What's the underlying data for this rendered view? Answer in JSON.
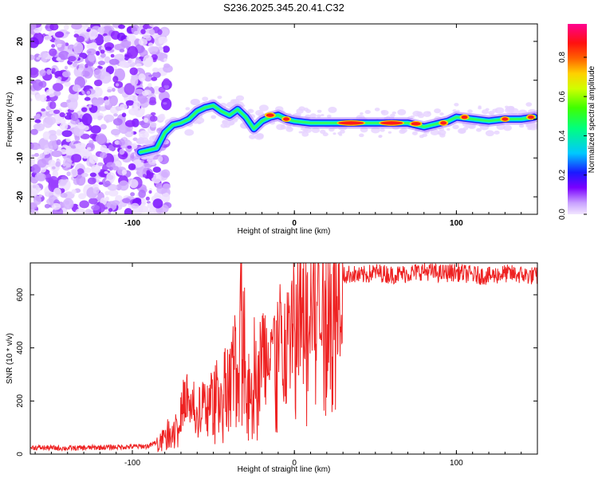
{
  "title": "S236.2025.345.20.41.C32",
  "chart_data": [
    {
      "type": "heatmap",
      "xlabel": "Height of straight line (km)",
      "ylabel": "Frequency (Hz)",
      "xlim": [
        -163,
        150
      ],
      "ylim": [
        -24.5,
        24.5
      ],
      "xticks": [
        "-100",
        "0",
        "100"
      ],
      "xtick_values": [
        -100,
        0,
        100
      ],
      "yticks": [
        "20",
        "10",
        "0",
        "-10",
        "-20"
      ],
      "ytick_values": [
        20,
        10,
        0,
        -10,
        -20
      ],
      "ridge_track": {
        "x": [
          -95,
          -90,
          -85,
          -80,
          -75,
          -70,
          -65,
          -60,
          -55,
          -50,
          -45,
          -40,
          -35,
          -30,
          -25,
          -20,
          -15,
          -10,
          -5,
          0,
          10,
          20,
          30,
          40,
          50,
          60,
          70,
          80,
          85,
          90,
          95,
          100,
          110,
          120,
          130,
          140,
          148
        ],
        "y": [
          -8.5,
          -8,
          -7.5,
          -3.5,
          -1.5,
          -1,
          0,
          2,
          3,
          3.5,
          2,
          1,
          2.5,
          0.5,
          -2.5,
          -0.5,
          0.5,
          1,
          0,
          -0.5,
          -1,
          -1,
          -1,
          -1,
          -1,
          -1,
          -1,
          -2,
          -1.5,
          -1,
          -0.5,
          0.5,
          0,
          -0.5,
          0,
          0,
          0.5
        ]
      },
      "colorbar": {
        "label": "Normalized spectral amplitude",
        "ticks": [
          "0.0",
          "0.2",
          "0.4",
          "0.6",
          "0.8"
        ],
        "tick_values": [
          0,
          0.2,
          0.4,
          0.6,
          0.8
        ],
        "range": [
          0,
          0.97
        ]
      }
    },
    {
      "type": "line",
      "xlabel": "Height of straight line (km)",
      "ylabel": "SNR (10 * v/v)",
      "xlim": [
        -163,
        150
      ],
      "ylim": [
        0,
        720
      ],
      "xticks": [
        "-100",
        "0",
        "100"
      ],
      "xtick_values": [
        -100,
        0,
        100
      ],
      "yticks": [
        "0",
        "200",
        "400",
        "600"
      ],
      "ytick_values": [
        0,
        200,
        400,
        600
      ],
      "color": "#ee2222",
      "series": [
        {
          "name": "SNR",
          "x": [
            -163,
            -140,
            -120,
            -100,
            -90,
            -85,
            -80,
            -75,
            -70,
            -67,
            -65,
            -62,
            -60,
            -57,
            -55,
            -52,
            -50,
            -48,
            -45,
            -42,
            -40,
            -37,
            -35,
            -33,
            -32,
            -31,
            -30,
            -29,
            -28,
            -25,
            -22,
            -20,
            -17,
            -15,
            -12,
            -10,
            -7,
            -5,
            -2,
            0,
            5,
            10,
            15,
            20,
            25,
            30,
            35,
            40,
            50,
            60,
            70,
            80,
            90,
            100,
            110,
            120,
            130,
            140,
            150
          ],
          "y": [
            25,
            22,
            25,
            28,
            30,
            45,
            80,
            110,
            150,
            250,
            170,
            200,
            140,
            220,
            180,
            240,
            200,
            270,
            230,
            320,
            280,
            380,
            260,
            550,
            420,
            680,
            200,
            350,
            290,
            380,
            310,
            420,
            380,
            480,
            400,
            450,
            440,
            500,
            520,
            540,
            570,
            600,
            630,
            650,
            660,
            670,
            680,
            670,
            685,
            675,
            680,
            690,
            680,
            685,
            675,
            670,
            680,
            675,
            670
          ]
        }
      ]
    }
  ]
}
